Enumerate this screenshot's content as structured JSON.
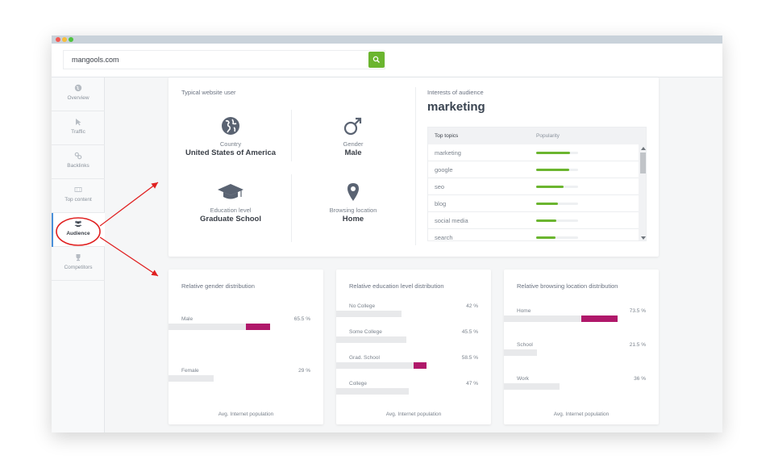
{
  "search": {
    "value": "mangools.com"
  },
  "sidebar": {
    "items": [
      {
        "label": "Overview",
        "icon": "globe-icon"
      },
      {
        "label": "Traffic",
        "icon": "cursor-icon"
      },
      {
        "label": "Backlinks",
        "icon": "link-icon"
      },
      {
        "label": "Top content",
        "icon": "content-icon"
      },
      {
        "label": "Audience",
        "icon": "users-icon",
        "active": true
      },
      {
        "label": "Competitors",
        "icon": "trophy-icon"
      }
    ]
  },
  "typical_user": {
    "title": "Typical website user",
    "country": {
      "label": "Country",
      "value": "United States of America"
    },
    "gender": {
      "label": "Gender",
      "value": "Male"
    },
    "education": {
      "label": "Education level",
      "value": "Graduate School"
    },
    "location": {
      "label": "Browsing location",
      "value": "Home"
    }
  },
  "interests": {
    "title": "Interests of audience",
    "main": "marketing",
    "col_topics": "Top topics",
    "col_popularity": "Popularity",
    "topics": [
      {
        "name": "marketing",
        "popularity": 0.81
      },
      {
        "name": "google",
        "popularity": 0.79
      },
      {
        "name": "seo",
        "popularity": 0.65
      },
      {
        "name": "blog",
        "popularity": 0.52
      },
      {
        "name": "social media",
        "popularity": 0.48
      },
      {
        "name": "search",
        "popularity": 0.46
      }
    ]
  },
  "gender_dist": {
    "title": "Relative gender distribution",
    "rows": [
      {
        "name": "Male",
        "pct": "65.5 %",
        "avg": 0.5,
        "value": 0.655
      },
      {
        "name": "Female",
        "pct": "29 %",
        "avg": 0.29,
        "value": 0.29
      }
    ],
    "footer": "Avg. Internet population"
  },
  "education_dist": {
    "title": "Relative education level distribution",
    "rows": [
      {
        "name": "No College",
        "pct": "42 %",
        "avg": 0.42,
        "value": 0.42
      },
      {
        "name": "Some College",
        "pct": "45.5 %",
        "avg": 0.455,
        "value": 0.455
      },
      {
        "name": "Grad. School",
        "pct": "58.5 %",
        "avg": 0.5,
        "value": 0.585
      },
      {
        "name": "College",
        "pct": "47 %",
        "avg": 0.47,
        "value": 0.47
      }
    ],
    "footer": "Avg. Internet population"
  },
  "location_dist": {
    "title": "Relative browsing location distribution",
    "rows": [
      {
        "name": "Home",
        "pct": "73.5 %",
        "avg": 0.5,
        "value": 0.735
      },
      {
        "name": "School",
        "pct": "21.5 %",
        "avg": 0.215,
        "value": 0.215
      },
      {
        "name": "Work",
        "pct": "36 %",
        "avg": 0.36,
        "value": 0.36
      }
    ],
    "footer": "Avg. Internet population"
  },
  "colors": {
    "accent_green": "#6bb52f",
    "bar_magenta": "#b0186a",
    "annotation_red": "#e02020"
  }
}
